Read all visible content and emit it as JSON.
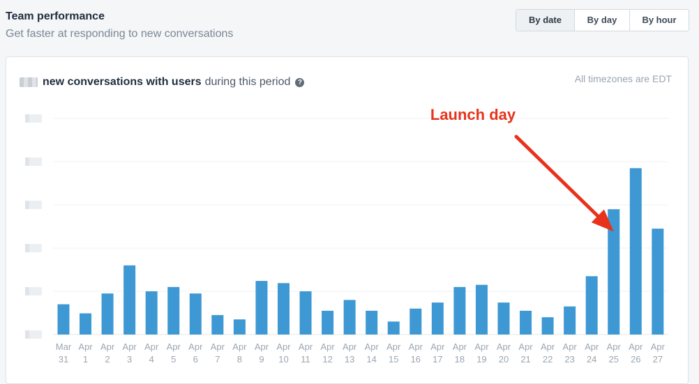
{
  "header": {
    "title": "Team performance",
    "subtitle": "Get faster at responding to new conversations"
  },
  "toggle": {
    "options": [
      "By date",
      "By day",
      "By hour"
    ],
    "selected": "By date"
  },
  "card": {
    "heading_bold": "new conversations with users",
    "heading_rest": "during this period",
    "timezone_note": "All timezones are EDT"
  },
  "colors": {
    "bar": "#3d98d3",
    "annotation": "#e8321b"
  },
  "chart_data": {
    "type": "bar",
    "categories": [
      [
        "Mar",
        "31"
      ],
      [
        "Apr",
        "1"
      ],
      [
        "Apr",
        "2"
      ],
      [
        "Apr",
        "3"
      ],
      [
        "Apr",
        "4"
      ],
      [
        "Apr",
        "5"
      ],
      [
        "Apr",
        "6"
      ],
      [
        "Apr",
        "7"
      ],
      [
        "Apr",
        "8"
      ],
      [
        "Apr",
        "9"
      ],
      [
        "Apr",
        "10"
      ],
      [
        "Apr",
        "11"
      ],
      [
        "Apr",
        "12"
      ],
      [
        "Apr",
        "13"
      ],
      [
        "Apr",
        "14"
      ],
      [
        "Apr",
        "15"
      ],
      [
        "Apr",
        "16"
      ],
      [
        "Apr",
        "17"
      ],
      [
        "Apr",
        "18"
      ],
      [
        "Apr",
        "19"
      ],
      [
        "Apr",
        "20"
      ],
      [
        "Apr",
        "21"
      ],
      [
        "Apr",
        "22"
      ],
      [
        "Apr",
        "23"
      ],
      [
        "Apr",
        "24"
      ],
      [
        "Apr",
        "25"
      ],
      [
        "Apr",
        "26"
      ],
      [
        "Apr",
        "27"
      ]
    ],
    "values": [
      0.7,
      0.49,
      0.95,
      1.6,
      1.0,
      1.1,
      0.95,
      0.45,
      0.35,
      1.24,
      1.19,
      1.0,
      0.55,
      0.8,
      0.55,
      0.3,
      0.6,
      0.74,
      1.1,
      1.15,
      0.74,
      0.55,
      0.4,
      0.65,
      1.35,
      2.9,
      3.85,
      2.45
    ],
    "ylim": [
      0,
      5
    ],
    "grid": true,
    "y_tick_labels_redacted": true,
    "annotation": {
      "text": "Launch day",
      "target_category_index": 25
    }
  }
}
